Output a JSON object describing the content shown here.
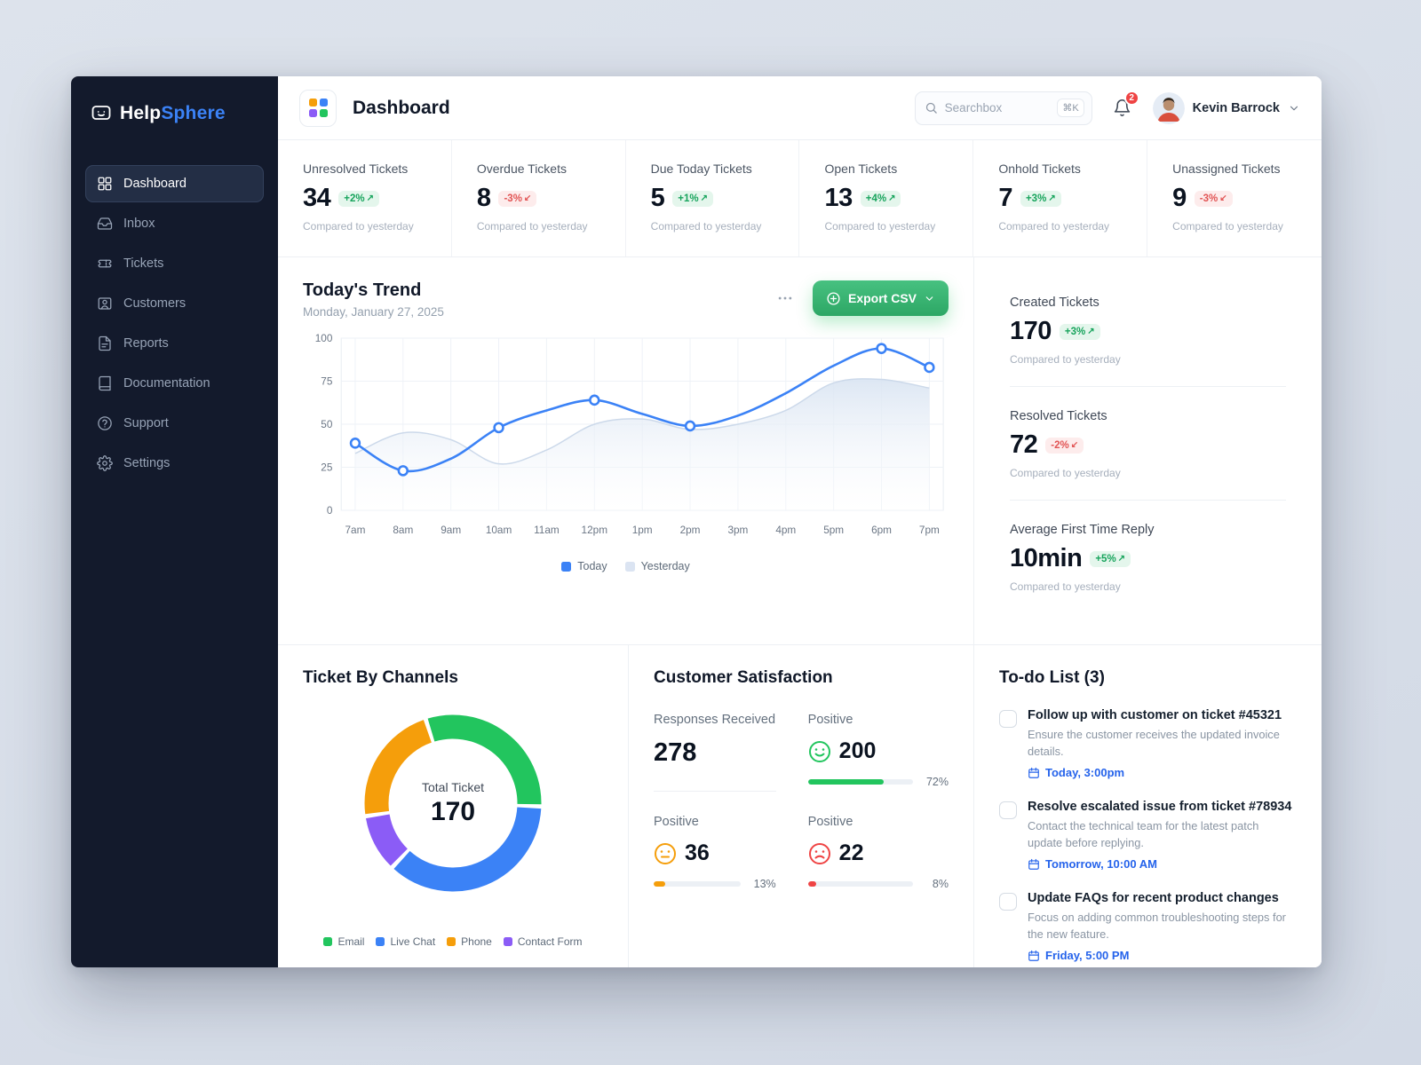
{
  "colors": {
    "accent_blue": "#3b82f6",
    "green": "#22c55e",
    "orange": "#f59e0b",
    "red": "#ef4444",
    "purple": "#8b5cf6",
    "badge_up_bg": "#e4f6ec",
    "badge_up_text": "#17a45c",
    "badge_down_bg": "#fdecec",
    "badge_down_text": "#e25555",
    "sidebar_bg": "#131a2c",
    "export_green_1": "#47c180",
    "export_green_2": "#2da765",
    "due_blue": "#2563eb"
  },
  "app": {
    "name_primary": "Help",
    "name_secondary": "Sphere"
  },
  "sidebar": {
    "items": [
      {
        "label": "Dashboard",
        "active": true
      },
      {
        "label": "Inbox"
      },
      {
        "label": "Tickets"
      },
      {
        "label": "Customers"
      },
      {
        "label": "Reports"
      },
      {
        "label": "Documentation"
      },
      {
        "label": "Support"
      },
      {
        "label": "Settings"
      }
    ]
  },
  "header": {
    "title": "Dashboard",
    "search_placeholder": "Searchbox",
    "search_shortcut": "⌘K",
    "notification_count": "2",
    "user_name": "Kevin Barrock"
  },
  "stats": [
    {
      "label": "Unresolved Tickets",
      "value": "34",
      "delta": "+2%",
      "arrow": "↗",
      "direction": "up",
      "note": "Compared to yesterday"
    },
    {
      "label": "Overdue Tickets",
      "value": "8",
      "delta": "-3%",
      "arrow": "↙",
      "direction": "down",
      "note": "Compared to yesterday"
    },
    {
      "label": "Due Today Tickets",
      "value": "5",
      "delta": "+1%",
      "arrow": "↗",
      "direction": "up",
      "note": "Compared to yesterday"
    },
    {
      "label": "Open Tickets",
      "value": "13",
      "delta": "+4%",
      "arrow": "↗",
      "direction": "up",
      "note": "Compared to yesterday"
    },
    {
      "label": "Onhold Tickets",
      "value": "7",
      "delta": "+3%",
      "arrow": "↗",
      "direction": "up",
      "note": "Compared to yesterday"
    },
    {
      "label": "Unassigned Tickets",
      "value": "9",
      "delta": "-3%",
      "arrow": "↙",
      "direction": "down",
      "note": "Compared to yesterday"
    }
  ],
  "trend": {
    "title": "Today's Trend",
    "subtitle": "Monday, January 27, 2025",
    "export_label": "Export CSV",
    "legend": [
      {
        "label": "Today",
        "color": "#3b82f6"
      },
      {
        "label": "Yesterday",
        "color": "#dbe4f2"
      }
    ]
  },
  "chart_data": [
    {
      "type": "line",
      "title": "Today's Trend",
      "x": [
        "7am",
        "8am",
        "9am",
        "10am",
        "11am",
        "12pm",
        "1pm",
        "2pm",
        "3pm",
        "4pm",
        "5pm",
        "6pm",
        "7pm"
      ],
      "series": [
        {
          "name": "Today",
          "style": "line",
          "color": "#3b82f6",
          "values": [
            39,
            23,
            30,
            48,
            58,
            64,
            56,
            49,
            55,
            68,
            84,
            94,
            83
          ],
          "marker_indices": [
            0,
            1,
            3,
            5,
            7,
            11,
            12
          ]
        },
        {
          "name": "Yesterday",
          "style": "area",
          "color": "#dbe4f2",
          "values": [
            33,
            45,
            41,
            27,
            35,
            50,
            53,
            47,
            50,
            58,
            74,
            76,
            71
          ]
        }
      ],
      "ylim": [
        0,
        100
      ],
      "yticks": [
        0,
        25,
        50,
        75,
        100
      ],
      "grid": true,
      "legend_position": "bottom"
    },
    {
      "type": "pie",
      "title": "Ticket By Channels",
      "donut": true,
      "start_angle_deg": -108,
      "center_label": "Total Ticket",
      "total": 170,
      "segments": [
        {
          "label": "Email",
          "value": 52,
          "color": "#22c55e"
        },
        {
          "label": "Live Chat",
          "value": 62,
          "color": "#3b82f6"
        },
        {
          "label": "Contact Form",
          "value": 18,
          "color": "#8b5cf6"
        },
        {
          "label": "Phone",
          "value": 38,
          "color": "#f59e0b"
        }
      ]
    }
  ],
  "right_stats": [
    {
      "label": "Created Tickets",
      "value": "170",
      "delta": "+3%",
      "arrow": "↗",
      "direction": "up",
      "note": "Compared to yesterday"
    },
    {
      "label": "Resolved Tickets",
      "value": "72",
      "delta": "-2%",
      "arrow": "↙",
      "direction": "down",
      "note": "Compared to yesterday"
    },
    {
      "label": "Average First Time Reply",
      "value": "10min",
      "delta": "+5%",
      "arrow": "↗",
      "direction": "up",
      "note": "Compared to yesterday"
    }
  ],
  "channels": {
    "title": "Ticket By Channels",
    "center_label": "Total Ticket",
    "center_value": "170",
    "legend": [
      {
        "label": "Email",
        "color": "#22c55e"
      },
      {
        "label": "Live Chat",
        "color": "#3b82f6"
      },
      {
        "label": "Phone",
        "color": "#f59e0b"
      },
      {
        "label": "Contact Form",
        "color": "#8b5cf6"
      }
    ]
  },
  "satisfaction": {
    "title": "Customer Satisfaction",
    "responses_label": "Responses Received",
    "responses_value": "278",
    "rows": [
      {
        "label": "Positive",
        "value": "200",
        "percent": 72,
        "percent_label": "72%",
        "mood": "happy",
        "color": "#22c55e"
      },
      {
        "label": "Positive",
        "value": "36",
        "percent": 13,
        "percent_label": "13%",
        "mood": "neutral",
        "color": "#f59e0b"
      },
      {
        "label": "Positive",
        "value": "22",
        "percent": 8,
        "percent_label": "8%",
        "mood": "sad",
        "color": "#ef4444"
      }
    ]
  },
  "todo": {
    "title": "To-do List (3)",
    "items": [
      {
        "title": "Follow up with customer on ticket #45321",
        "desc": "Ensure the customer receives the updated invoice details.",
        "due": "Today, 3:00pm"
      },
      {
        "title": "Resolve escalated issue from ticket #78934",
        "desc": "Contact the technical team for the latest patch update before replying.",
        "due": "Tomorrow, 10:00 AM"
      },
      {
        "title": "Update FAQs for recent product changes",
        "desc": "Focus on adding common troubleshooting steps for the new feature.",
        "due": "Friday, 5:00 PM"
      }
    ]
  }
}
